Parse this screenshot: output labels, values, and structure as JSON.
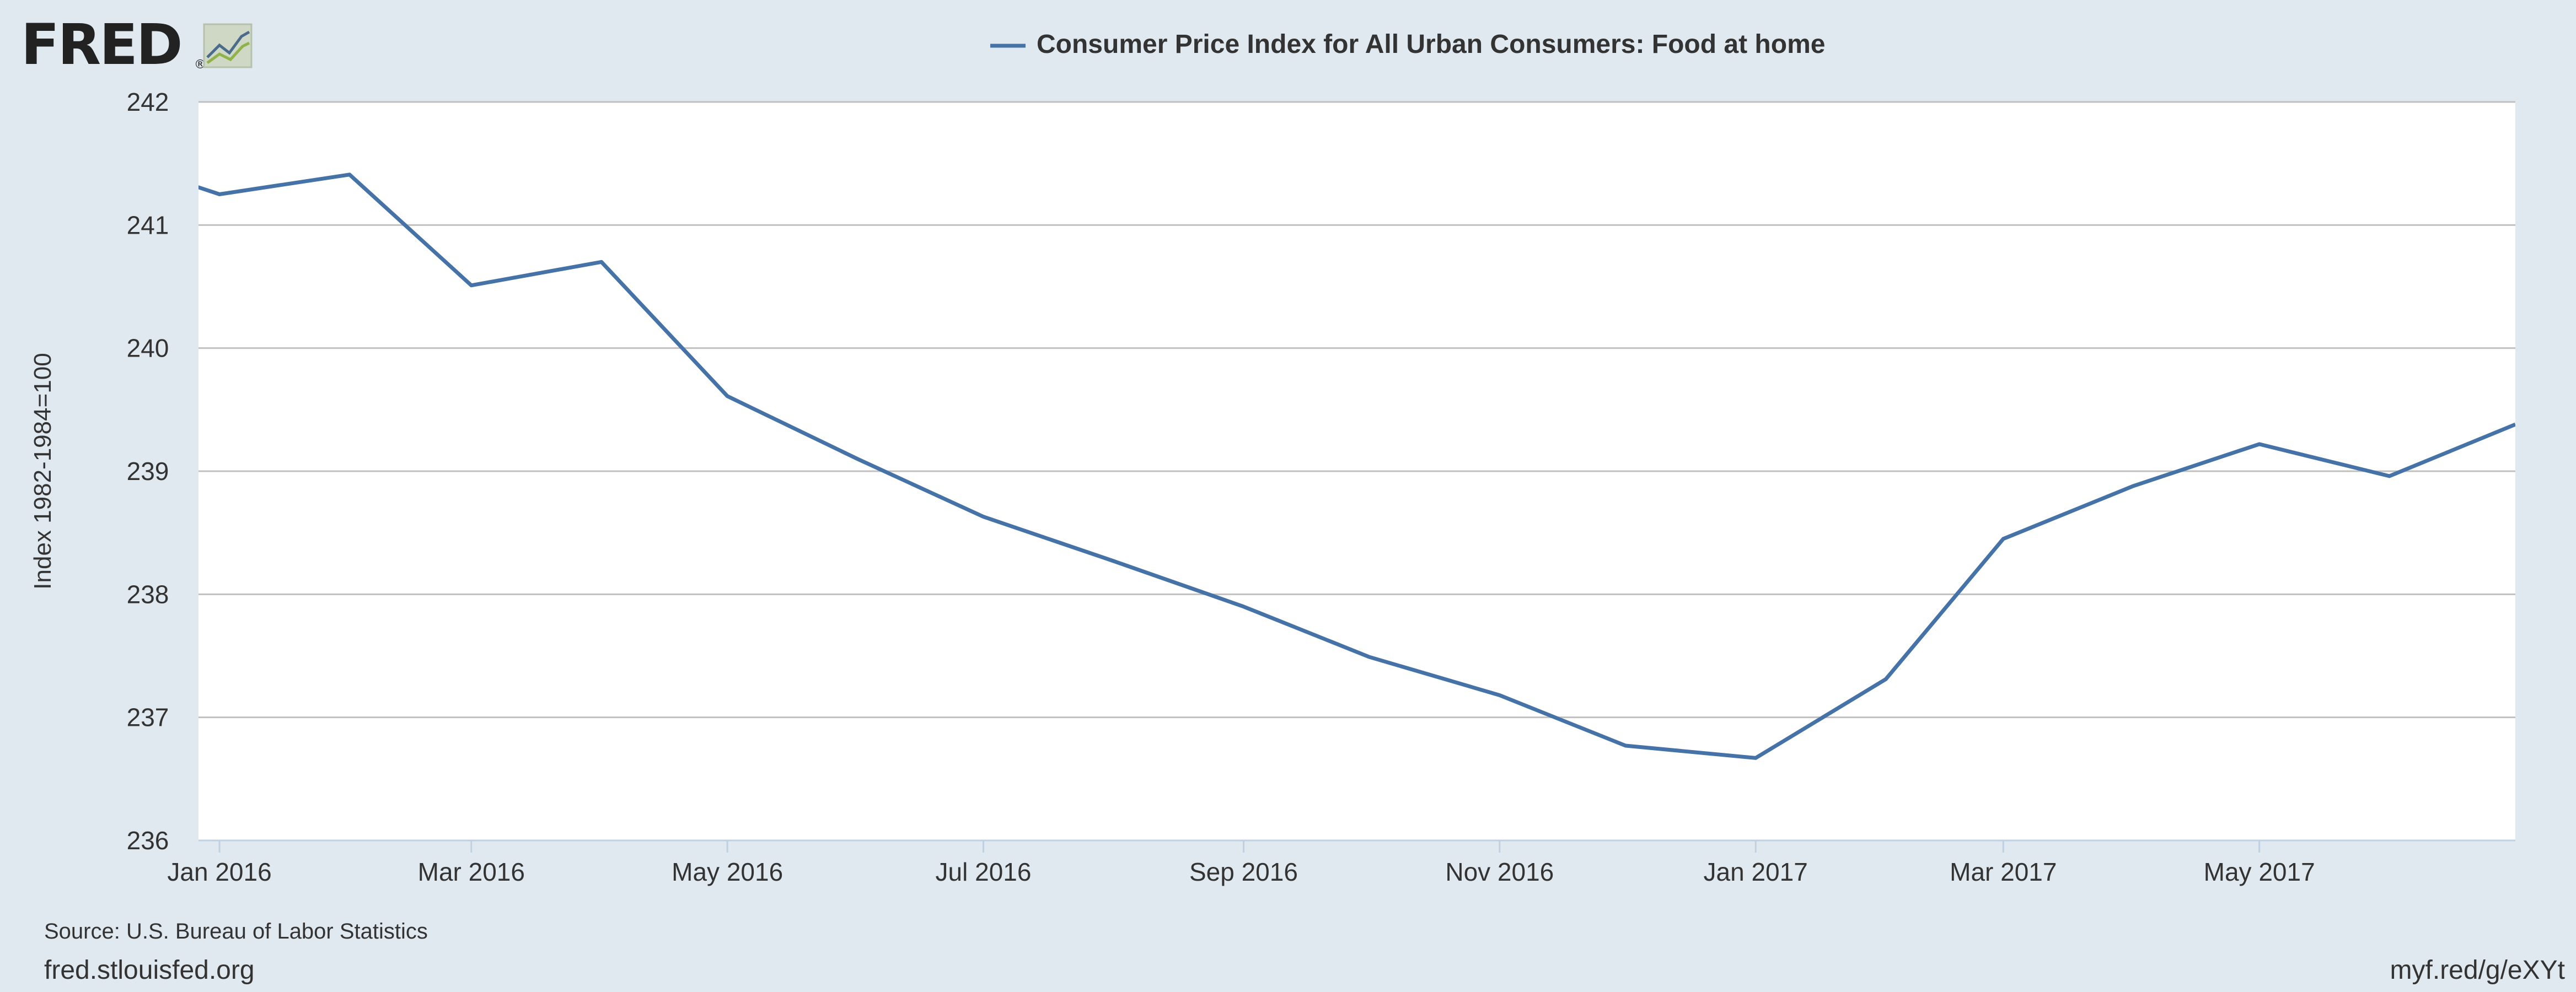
{
  "brand": {
    "logo_text": "FRED",
    "registered_mark": "®"
  },
  "colors": {
    "background": "#e1e9f0",
    "plot_background": "#ffffff",
    "series_line": "#4572a7",
    "grid": "#c0c0c0",
    "text": "#333333",
    "logo_text": "#222222",
    "logo_icon_frame": "#cfd8c5",
    "logo_icon_line_a": "#4a6b8a",
    "logo_icon_line_b": "#8fb24a"
  },
  "footer": {
    "source": "Source: U.S. Bureau of Labor Statistics",
    "site": "fred.stlouisfed.org",
    "short_link": "myf.red/g/eXYt"
  },
  "chart_data": {
    "type": "line",
    "title": "",
    "legend_position": "top-center",
    "xlabel": "",
    "ylabel": "Index 1982-1984=100",
    "ylim": [
      236,
      242
    ],
    "yticks": [
      "236",
      "237",
      "238",
      "239",
      "240",
      "241",
      "242"
    ],
    "xlim": [
      "2015-12-27",
      "2017-07-01"
    ],
    "xticks": [
      {
        "date": "2016-01-01",
        "label": "Jan 2016"
      },
      {
        "date": "2016-03-01",
        "label": "Mar 2016"
      },
      {
        "date": "2016-05-01",
        "label": "May 2016"
      },
      {
        "date": "2016-07-01",
        "label": "Jul 2016"
      },
      {
        "date": "2016-09-01",
        "label": "Sep 2016"
      },
      {
        "date": "2016-11-01",
        "label": "Nov 2016"
      },
      {
        "date": "2017-01-01",
        "label": "Jan 2017"
      },
      {
        "date": "2017-03-01",
        "label": "Mar 2017"
      },
      {
        "date": "2017-05-01",
        "label": "May 2017"
      }
    ],
    "grid": true,
    "series": [
      {
        "name": "Consumer Price Index for All Urban Consumers: Food at home",
        "color": "#4572a7",
        "x": [
          "2015-12-01",
          "2016-01-01",
          "2016-02-01",
          "2016-03-01",
          "2016-04-01",
          "2016-05-01",
          "2016-06-01",
          "2016-07-01",
          "2016-08-01",
          "2016-09-01",
          "2016-10-01",
          "2016-11-01",
          "2016-12-01",
          "2017-01-01",
          "2017-02-01",
          "2017-03-01",
          "2017-04-01",
          "2017-05-01",
          "2017-06-01",
          "2017-07-01"
        ],
        "values": [
          241.6,
          241.25,
          241.41,
          240.51,
          240.7,
          239.61,
          239.1,
          238.63,
          238.27,
          237.9,
          237.49,
          237.18,
          236.77,
          236.67,
          237.31,
          238.45,
          238.88,
          239.22,
          238.96,
          239.38
        ]
      }
    ]
  }
}
